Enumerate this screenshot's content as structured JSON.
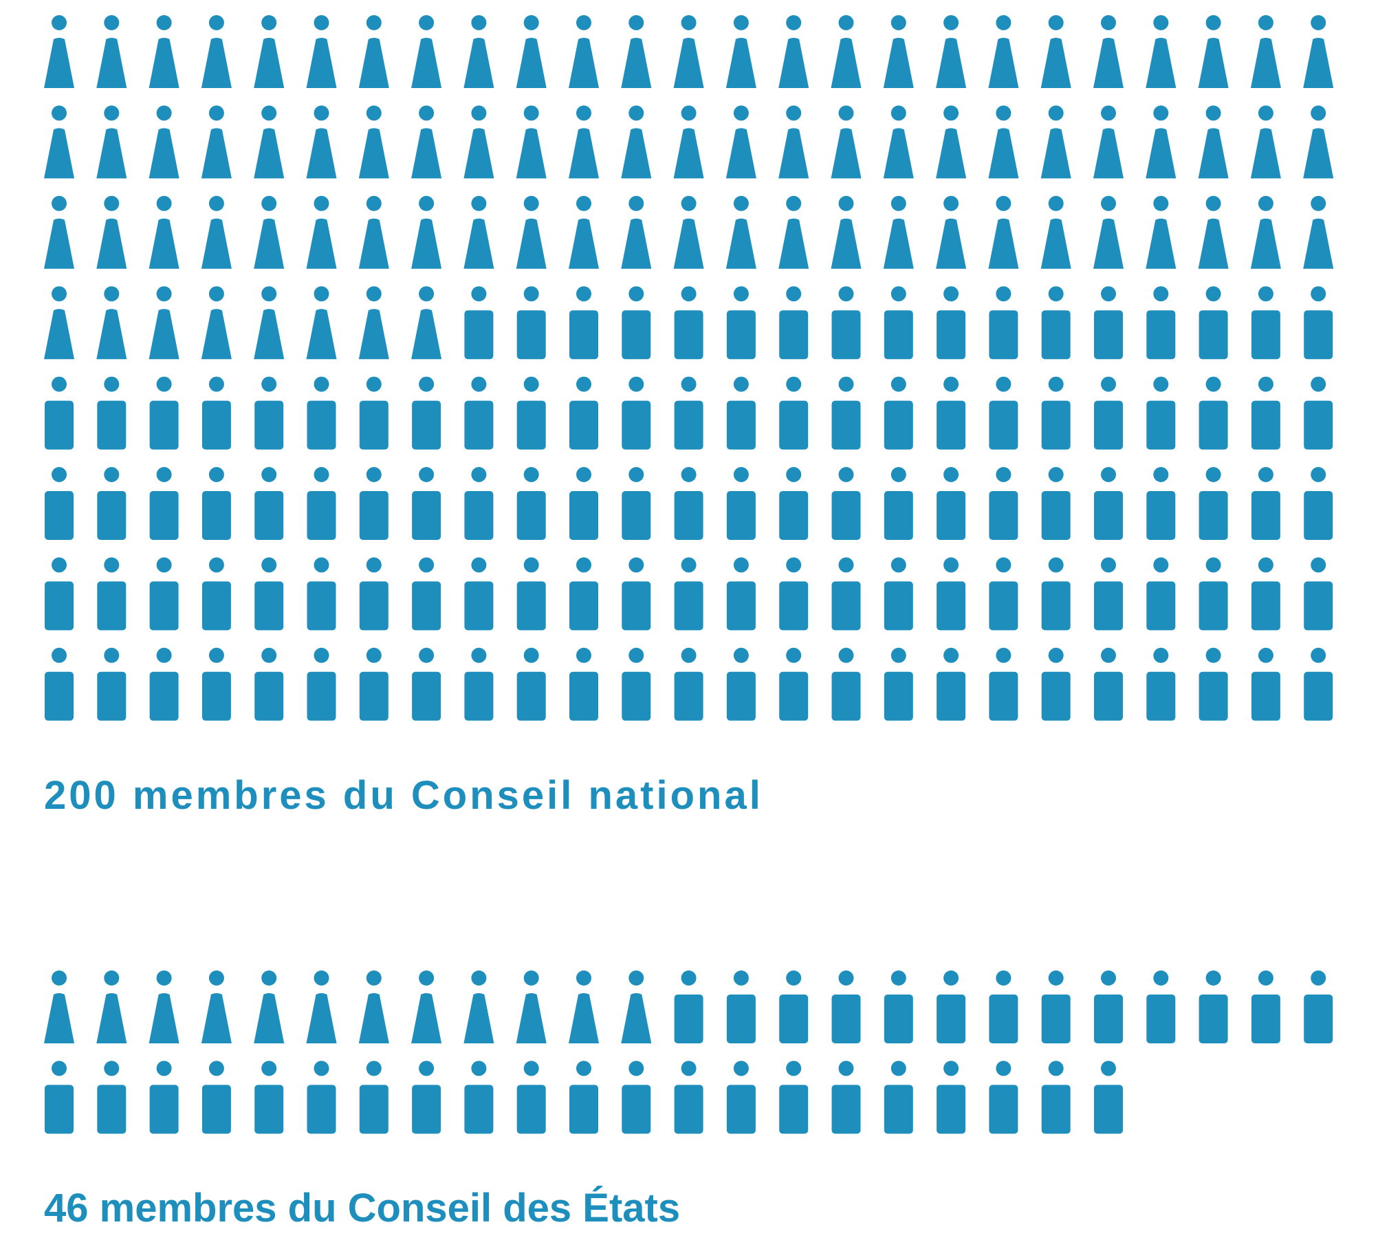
{
  "chart_data": [
    {
      "type": "pictogram",
      "title": "200 membres du Conseil national",
      "categories": [
        null,
        null
      ],
      "values": [
        83,
        117
      ],
      "color": "#1e8fbd"
    },
    {
      "type": "pictogram",
      "title": "46 membres du Conseil des États",
      "categories": [
        null,
        null
      ],
      "values": [
        12,
        34
      ],
      "color": "#1e8fbd"
    }
  ]
}
